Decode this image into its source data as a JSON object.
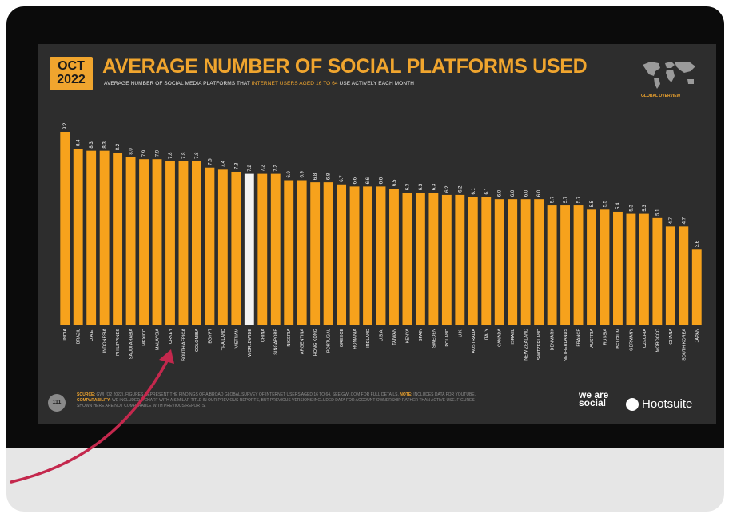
{
  "header": {
    "month": "OCT",
    "year": "2022",
    "title": "AVERAGE NUMBER OF SOCIAL PLATFORMS USED",
    "subtitle_pre": "AVERAGE NUMBER OF SOCIAL MEDIA PLATFORMS THAT ",
    "subtitle_highlight": "INTERNET USERS AGED 16 TO 64",
    "subtitle_post": " USE ACTIVELY EACH MONTH",
    "section": "GLOBAL OVERVIEW"
  },
  "footer": {
    "page_number": "111",
    "source_label": "SOURCE:",
    "source_text": "GWI (Q2 2022). FIGURES REPRESENT THE FINDINGS OF A BROAD GLOBAL SURVEY OF INTERNET USERS AGED 16 TO 64. SEE GWI.COM FOR FULL DETAILS.",
    "note_label": "NOTE:",
    "note_text": "INCLUDES DATA FOR YOUTUBE.",
    "comparability_label": "COMPARABILITY:",
    "comparability_text": "WE INCLUDED A CHART WITH A SIMILAR TITLE IN OUR PREVIOUS REPORTS, BUT PREVIOUS VERSIONS INCLUDED DATA FOR ACCOUNT OWNERSHIP RATHER THAN ACTIVE USE. FIGURES",
    "comparability_text2": "SHOWN HERE ARE NOT COMPARABLE WITH PREVIOUS REPORTS.",
    "brand1": "we are social",
    "brand2": "Hootsuite"
  },
  "colors": {
    "bar": "#f7a21c",
    "highlight_bar": "#f2f2f2",
    "accent": "#f0a52e",
    "arrow": "#c4284d"
  },
  "chart_data": {
    "type": "bar",
    "title": "AVERAGE NUMBER OF SOCIAL PLATFORMS USED",
    "highlight_category": "WORLDWIDE",
    "categories": [
      "INDIA",
      "BRAZIL",
      "U.A.E.",
      "INDONESIA",
      "PHILIPPINES",
      "SAUDI ARABIA",
      "MEXICO",
      "MALAYSIA",
      "TURKEY",
      "SOUTH AFRICA",
      "COLOMBIA",
      "EGYPT",
      "THAILAND",
      "VIETNAM",
      "WORLDWIDE",
      "CHINA",
      "SINGAPORE",
      "NIGERIA",
      "ARGENTINA",
      "HONG KONG",
      "PORTUGAL",
      "GREECE",
      "ROMANIA",
      "IRELAND",
      "U.S.A.",
      "TAIWAN",
      "KENYA",
      "SPAIN",
      "SWEDEN",
      "POLAND",
      "U.K.",
      "AUSTRALIA",
      "ITALY",
      "CANADA",
      "ISRAEL",
      "NEW ZEALAND",
      "SWITZERLAND",
      "DENMARK",
      "NETHERLANDS",
      "FRANCE",
      "AUSTRIA",
      "RUSSIA",
      "BELGIUM",
      "GERMANY",
      "CZECHIA",
      "MOROCCO",
      "GHANA",
      "SOUTH KOREA",
      "JAPAN"
    ],
    "values": [
      9.2,
      8.4,
      8.3,
      8.3,
      8.2,
      8.0,
      7.9,
      7.9,
      7.8,
      7.8,
      7.8,
      7.5,
      7.4,
      7.3,
      7.2,
      7.2,
      7.2,
      6.9,
      6.9,
      6.8,
      6.8,
      6.7,
      6.6,
      6.6,
      6.6,
      6.5,
      6.3,
      6.3,
      6.3,
      6.2,
      6.2,
      6.1,
      6.1,
      6.0,
      6.0,
      6.0,
      6.0,
      5.7,
      5.7,
      5.7,
      5.5,
      5.5,
      5.4,
      5.3,
      5.3,
      5.1,
      4.7,
      4.7,
      3.6
    ],
    "value_labels": [
      "9.2",
      "8.4",
      "8.3",
      "8.3",
      "8.2",
      "8.0",
      "7.9",
      "7.9",
      "7.8",
      "7.8",
      "7.8",
      "7.5",
      "7.4",
      "7.3",
      "7.2",
      "7.2",
      "7.2",
      "6.9",
      "6.9",
      "6.8",
      "6.8",
      "6.7",
      "6.6",
      "6.6",
      "6.6",
      "6.5",
      "6.3",
      "6.3",
      "6.3",
      "6.2",
      "6.2",
      "6.1",
      "6.1",
      "6.0",
      "6.0",
      "6.0",
      "6.0",
      "5.7",
      "5.7",
      "5.7",
      "5.5",
      "5.5",
      "5.4",
      "5.3",
      "5.3",
      "5.1",
      "4.7",
      "4.7",
      "3.6"
    ],
    "ylim": [
      0,
      9.2
    ],
    "grid": false,
    "legend": "none"
  }
}
